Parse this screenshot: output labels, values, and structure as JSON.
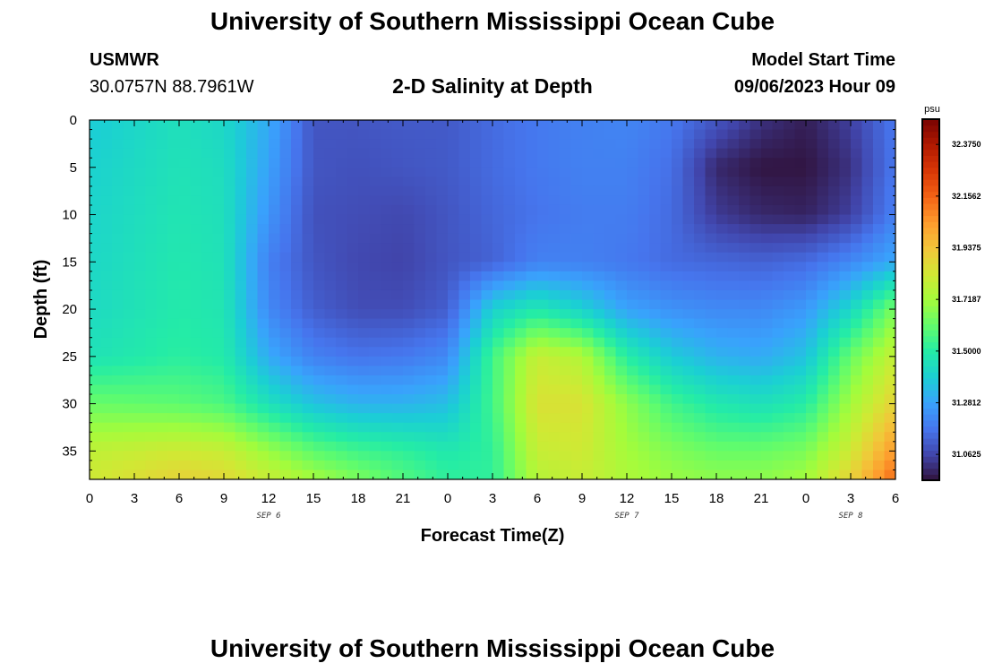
{
  "header": {
    "title": "University of Southern Mississippi Ocean Cube",
    "station": "USMWR",
    "coords": "30.0757N  88.7961W",
    "subtitle": "2-D Salinity at Depth",
    "model_start_label": "Model Start Time",
    "model_start_value": "09/06/2023 Hour 09"
  },
  "footer": {
    "title": "University of Southern Mississippi Ocean Cube"
  },
  "chart_data": {
    "type": "heatmap",
    "title": "2-D Salinity at Depth",
    "xlabel": "Forecast Time(Z)",
    "ylabel": "Depth (ft)",
    "x_tick_labels": [
      "0",
      "3",
      "6",
      "9",
      "12",
      "15",
      "18",
      "21",
      "0",
      "3",
      "6",
      "9",
      "12",
      "15",
      "18",
      "21",
      "0",
      "3",
      "6"
    ],
    "x_range_hours": [
      0,
      54
    ],
    "date_labels": [
      {
        "text": "SEP 6",
        "hour": 12
      },
      {
        "text": "SEP 7",
        "hour": 36
      },
      {
        "text": "SEP 8",
        "hour": 51
      }
    ],
    "y_ticks": [
      0,
      5,
      10,
      15,
      20,
      25,
      30,
      35
    ],
    "y_range": [
      0,
      38
    ],
    "y_inverted": true,
    "colorbar": {
      "unit": "psu",
      "min": 30.953,
      "max": 32.482,
      "tick_labels": [
        "32.3750",
        "32.1562",
        "31.9375",
        "31.7187",
        "31.5000",
        "31.2812",
        "31.0625"
      ],
      "tick_values": [
        32.375,
        32.15625,
        31.9375,
        31.71875,
        31.5,
        31.28125,
        31.0625
      ],
      "colors": [
        "#30123b",
        "#4145ab",
        "#4675ed",
        "#39a2fc",
        "#1bcfd4",
        "#24eca6",
        "#61fc6c",
        "#a4fc3b",
        "#d1e834",
        "#f3c63a",
        "#fe9b2d",
        "#f36315",
        "#d93806",
        "#b11901",
        "#7a0402"
      ]
    },
    "field_samples": {
      "hours": [
        0,
        6,
        9,
        12,
        15,
        18,
        21,
        24,
        27,
        30,
        33,
        36,
        39,
        42,
        45,
        48,
        51,
        54
      ],
      "depths": [
        0,
        5,
        10,
        15,
        20,
        25,
        30,
        35,
        38
      ],
      "salinity": [
        [
          31.38,
          31.45,
          31.42,
          31.3,
          31.1,
          31.1,
          31.11,
          31.11,
          31.15,
          31.18,
          31.2,
          31.21,
          31.18,
          31.1,
          31.02,
          30.98,
          31.05,
          31.18
        ],
        [
          31.4,
          31.46,
          31.44,
          31.28,
          31.1,
          31.09,
          31.1,
          31.11,
          31.15,
          31.18,
          31.2,
          31.2,
          31.16,
          31.0,
          30.96,
          30.96,
          31.02,
          31.18
        ],
        [
          31.41,
          31.47,
          31.45,
          31.25,
          31.09,
          31.08,
          31.07,
          31.1,
          31.14,
          31.17,
          31.19,
          31.19,
          31.15,
          31.04,
          31.0,
          30.99,
          31.05,
          31.2
        ],
        [
          31.42,
          31.48,
          31.46,
          31.2,
          31.1,
          31.07,
          31.06,
          31.1,
          31.13,
          31.2,
          31.2,
          31.18,
          31.15,
          31.14,
          31.13,
          31.15,
          31.22,
          31.3
        ],
        [
          31.43,
          31.49,
          31.47,
          31.22,
          31.12,
          31.08,
          31.08,
          31.12,
          31.4,
          31.48,
          31.4,
          31.28,
          31.24,
          31.22,
          31.22,
          31.26,
          31.42,
          31.65
        ],
        [
          31.46,
          31.51,
          31.49,
          31.3,
          31.2,
          31.17,
          31.18,
          31.22,
          31.55,
          31.8,
          31.75,
          31.5,
          31.38,
          31.32,
          31.3,
          31.36,
          31.62,
          31.8
        ],
        [
          31.62,
          31.6,
          31.57,
          31.45,
          31.36,
          31.32,
          31.32,
          31.35,
          31.55,
          31.85,
          31.85,
          31.68,
          31.55,
          31.48,
          31.45,
          31.5,
          31.72,
          31.9
        ],
        [
          31.78,
          31.82,
          31.8,
          31.7,
          31.6,
          31.55,
          31.52,
          31.48,
          31.52,
          31.8,
          31.82,
          31.72,
          31.66,
          31.62,
          31.62,
          31.65,
          31.82,
          32.05
        ],
        [
          31.82,
          31.9,
          31.88,
          31.8,
          31.72,
          31.65,
          31.58,
          31.52,
          31.52,
          31.76,
          31.8,
          31.74,
          31.7,
          31.68,
          31.68,
          31.72,
          31.9,
          32.15
        ]
      ]
    }
  }
}
